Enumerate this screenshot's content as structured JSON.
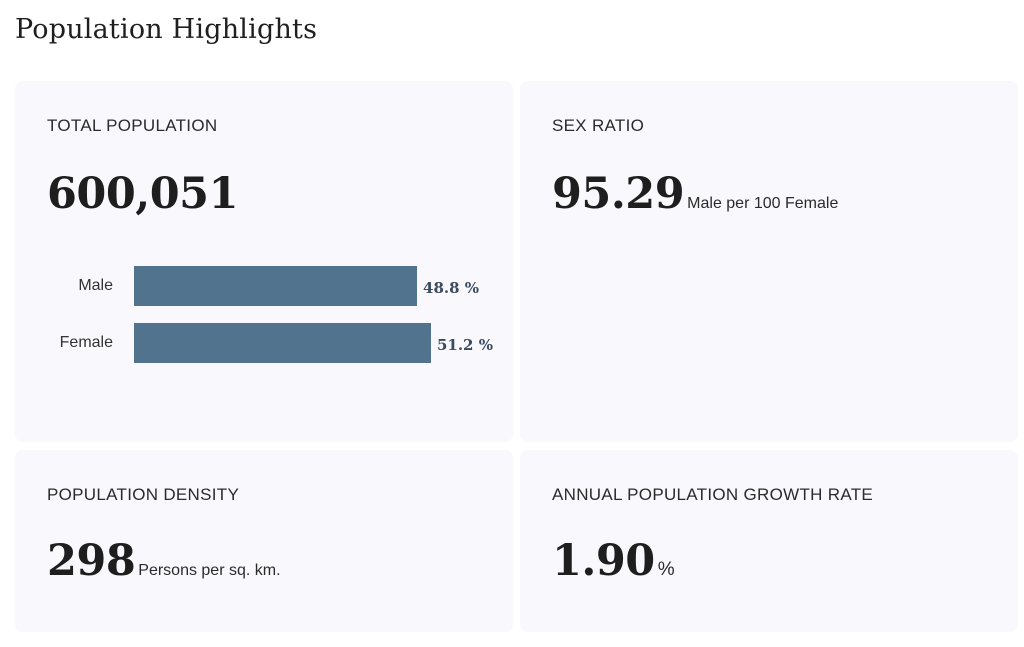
{
  "page": {
    "title": "Population Highlights"
  },
  "total_population": {
    "label": "TOTAL POPULATION",
    "value": "600,051",
    "chart_data": {
      "type": "bar",
      "orientation": "horizontal",
      "categories": [
        "Male",
        "Female"
      ],
      "values": [
        48.8,
        51.2
      ],
      "value_labels": [
        "48.8 %",
        "51.2 %"
      ],
      "color": "#52738e"
    }
  },
  "sex_ratio": {
    "label": "SEX RATIO",
    "value": "95.29",
    "unit": "Male per 100 Female"
  },
  "density": {
    "label": "POPULATION DENSITY",
    "value": "298",
    "unit": "Persons per sq. km."
  },
  "growth": {
    "label": "ANNUAL POPULATION GROWTH RATE",
    "value": "1.90",
    "unit": "%"
  }
}
